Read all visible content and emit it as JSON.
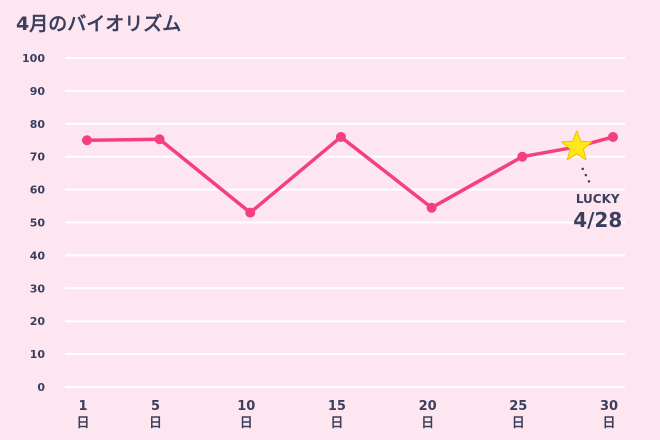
{
  "chart_data": {
    "type": "line",
    "title": "4月のバイオリズム",
    "x": [
      1,
      5,
      10,
      15,
      20,
      25,
      28,
      30
    ],
    "series": [
      {
        "color": "#f4407e",
        "values": [
          75,
          75.3,
          53,
          76,
          54.5,
          70,
          73,
          76
        ]
      }
    ],
    "xlim": [
      1,
      30
    ],
    "xticks": [
      1,
      5,
      10,
      15,
      20,
      25,
      30
    ],
    "x_unit": "日",
    "ylim": [
      0,
      100
    ],
    "yticks": [
      0,
      10,
      20,
      30,
      40,
      50,
      60,
      70,
      80,
      90,
      100
    ],
    "grid": true,
    "highlight": {
      "index": 6,
      "color": "#ffe81a",
      "label": "LUCKY",
      "date": "4/28"
    }
  }
}
